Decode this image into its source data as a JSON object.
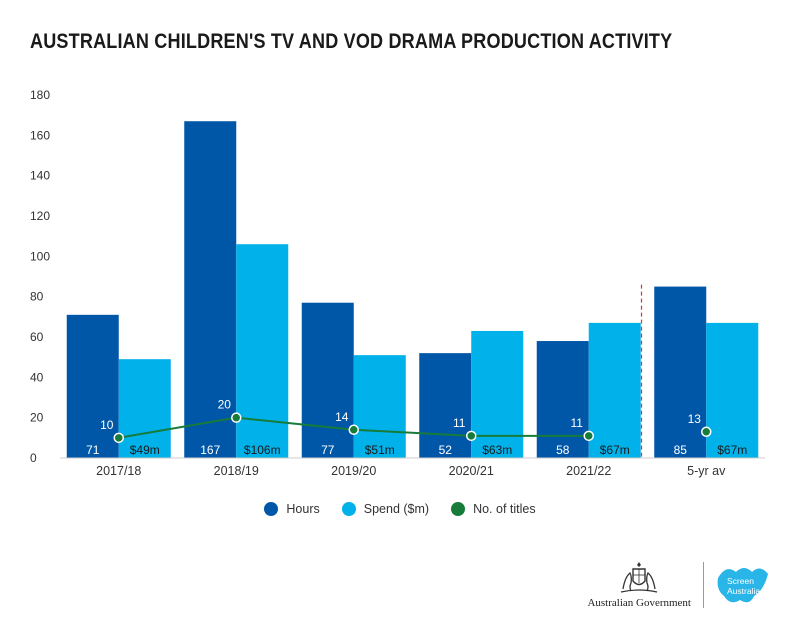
{
  "colors": {
    "hours": "#0057a8",
    "spend": "#00b1ea",
    "titles": "#177b3a",
    "divider": "#e03030"
  },
  "legend": {
    "hours": "Hours",
    "spend": "Spend ($m)",
    "titles": "No. of titles"
  },
  "logos": {
    "gov": "Australian Government",
    "gov_crest": "coat-of-arms",
    "screen_line1": "Screen",
    "screen_line2": "Australia"
  },
  "chart_data": {
    "type": "bar",
    "title": "AUSTRALIAN CHILDREN'S TV AND VOD DRAMA PRODUCTION ACTIVITY",
    "categories": [
      "2017/18",
      "2018/19",
      "2019/20",
      "2020/21",
      "2021/22",
      "5-yr av"
    ],
    "yticks": [
      "0",
      "20",
      "40",
      "60",
      "80",
      "100",
      "120",
      "140",
      "160",
      "180"
    ],
    "ylim": [
      0,
      180
    ],
    "grid": false,
    "legend_position": "bottom",
    "series": [
      {
        "name": "Hours",
        "values": [
          71,
          167,
          77,
          52,
          58,
          85
        ],
        "labels": [
          "71",
          "167",
          "77",
          "52",
          "58",
          "85"
        ]
      },
      {
        "name": "Spend ($m)",
        "values": [
          49,
          106,
          51,
          63,
          67,
          67
        ],
        "labels": [
          "$49m",
          "$106m",
          "$51m",
          "$63m",
          "$67m",
          "$67m"
        ]
      },
      {
        "name": "No. of titles",
        "type": "line",
        "values": [
          10,
          20,
          14,
          11,
          11,
          13
        ],
        "labels": [
          "10",
          "20",
          "14",
          "11",
          "11",
          "13"
        ]
      }
    ],
    "annotations": [
      "dashed separator before 5-yr av"
    ]
  }
}
